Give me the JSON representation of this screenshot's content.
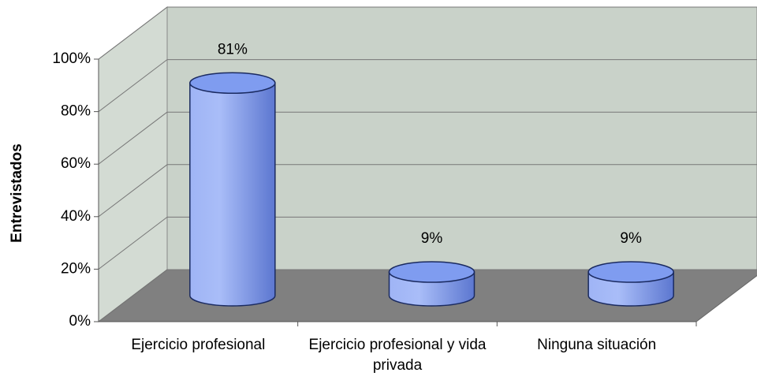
{
  "chart_data": {
    "type": "bar3d",
    "y_axis_label": "Entrevistados",
    "categories": [
      "Ejercicio profesional",
      "Ejercicio profesional y vida privada",
      "Ninguna situación"
    ],
    "values": [
      81,
      9,
      9
    ],
    "value_labels": [
      "81%",
      "9%",
      "9%"
    ],
    "color": "#7f9cf0",
    "ylim": [
      0,
      100
    ],
    "yticks": [
      {
        "value": 0,
        "label": "0%"
      },
      {
        "value": 20,
        "label": "20%"
      },
      {
        "value": 40,
        "label": "40%"
      },
      {
        "value": 60,
        "label": "60%"
      },
      {
        "value": 80,
        "label": "80%"
      },
      {
        "value": 100,
        "label": "100%"
      }
    ],
    "grid": true
  }
}
